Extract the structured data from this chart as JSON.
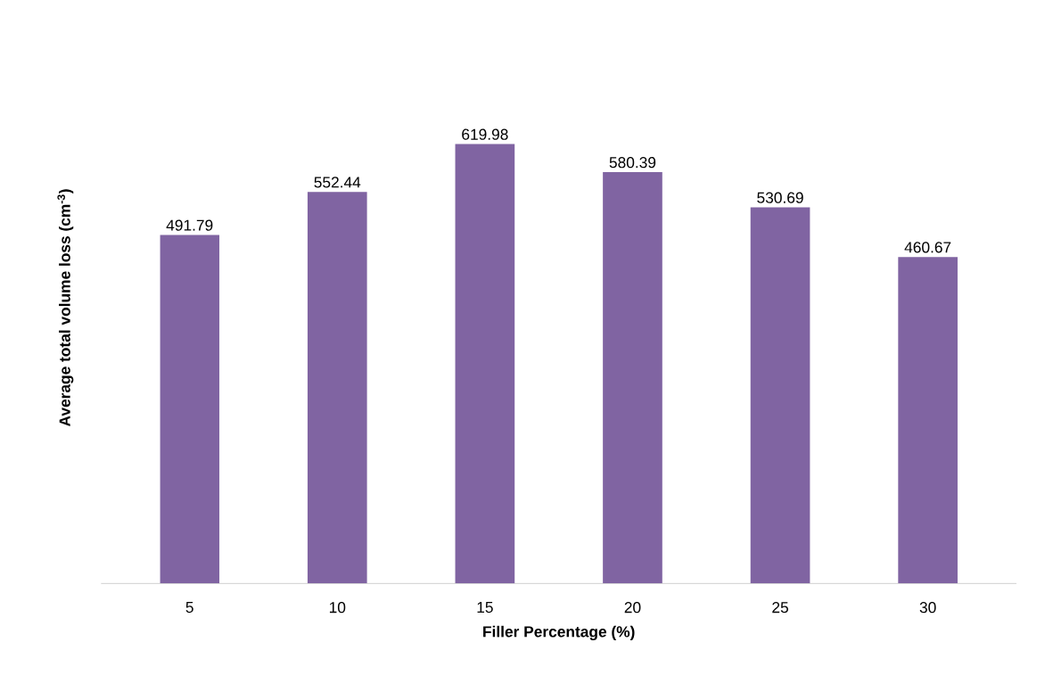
{
  "chart_data": {
    "type": "bar",
    "xlabel": "Filler Percentage (%)",
    "ylabel": "Average total volume loss (cm$^{-3}$)",
    "categories": [
      "5",
      "10",
      "15",
      "20",
      "25",
      "30"
    ],
    "values": [
      491.79,
      552.44,
      619.98,
      580.39,
      530.69,
      460.67
    ],
    "color": "#8064a2",
    "tick_labels": "x",
    "data_labels": true
  }
}
